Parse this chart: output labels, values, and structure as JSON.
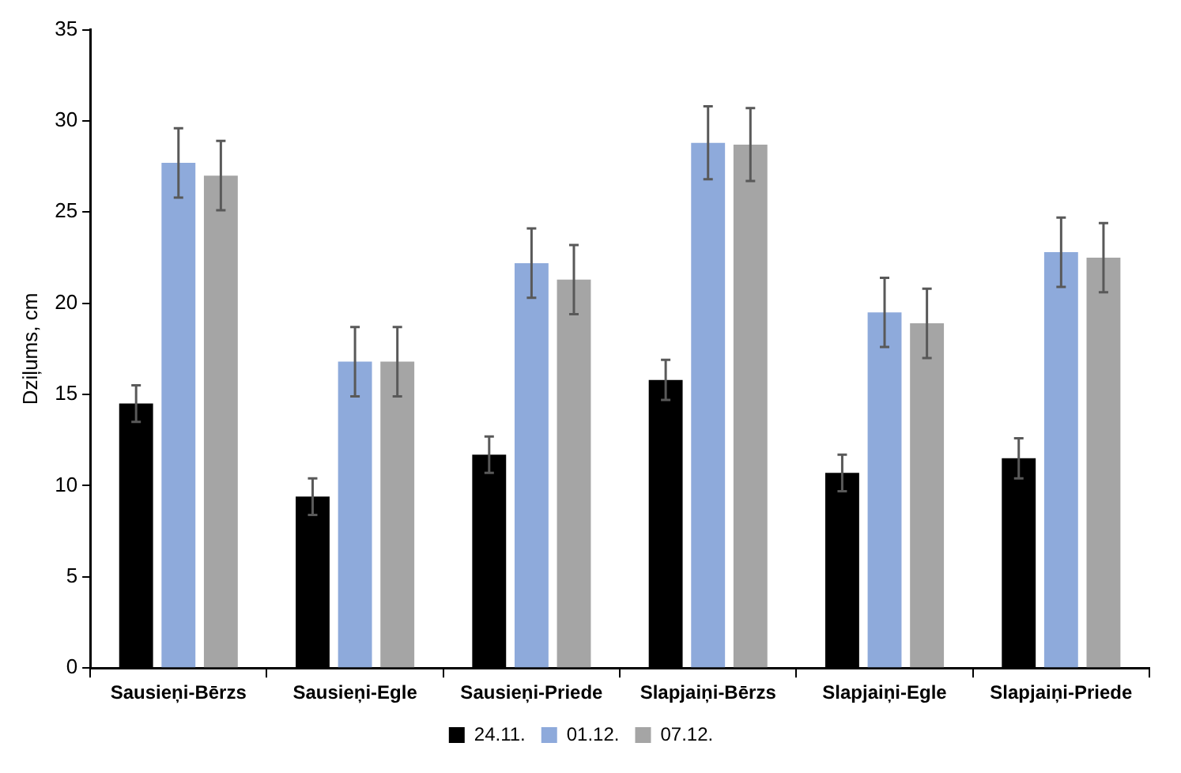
{
  "chart_data": {
    "type": "bar",
    "ylabel": "Dziļums, cm",
    "categories": [
      "Sausieņi-Bērzs",
      "Sausieņi-Egle",
      "Sausieņi-Priede",
      "Slapjaiņi-Bērzs",
      "Slapjaiņi-Egle",
      "Slapjaiņi-Priede"
    ],
    "series": [
      {
        "name": "24.11.",
        "color": "#000000",
        "values": [
          14.5,
          9.4,
          11.7,
          15.8,
          10.7,
          11.5
        ],
        "errors": [
          1.0,
          1.0,
          1.0,
          1.1,
          1.0,
          1.1
        ]
      },
      {
        "name": "01.12.",
        "color": "#8eaadb",
        "values": [
          27.7,
          16.8,
          22.2,
          28.8,
          19.5,
          22.8
        ],
        "errors": [
          1.9,
          1.9,
          1.9,
          2.0,
          1.9,
          1.9
        ]
      },
      {
        "name": "07.12.",
        "color": "#a5a5a5",
        "values": [
          27.0,
          16.8,
          21.3,
          28.7,
          18.9,
          22.5
        ],
        "errors": [
          1.9,
          1.9,
          1.9,
          2.0,
          1.9,
          1.9
        ]
      }
    ],
    "ylim": [
      0,
      35
    ],
    "yticks": [
      0,
      5,
      10,
      15,
      20,
      25,
      30,
      35
    ],
    "grid": false,
    "legend": "bottom"
  }
}
